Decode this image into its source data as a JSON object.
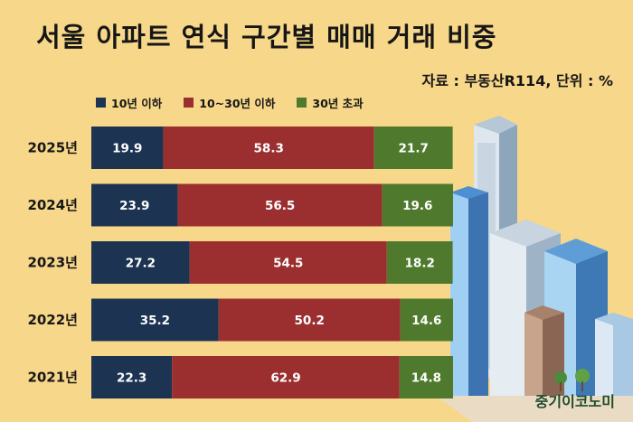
{
  "title": "서울 아파트 연식 구간별 매매 거래 비중",
  "source": "자료 : 부동산R114, 단위 : %",
  "brand": "중기이코노미",
  "colors": {
    "series": [
      "#1c3352",
      "#9b2f30",
      "#4f7a2d"
    ]
  },
  "chart_data": {
    "type": "bar",
    "orientation": "horizontal",
    "stacked": true,
    "categories": [
      "2025년",
      "2024년",
      "2023년",
      "2022년",
      "2021년"
    ],
    "series": [
      {
        "name": "10년 이하",
        "values": [
          19.9,
          23.9,
          27.2,
          35.2,
          22.3
        ]
      },
      {
        "name": "10~30년 이하",
        "values": [
          58.3,
          56.5,
          54.5,
          50.2,
          62.9
        ]
      },
      {
        "name": "30년 초과",
        "values": [
          21.7,
          19.6,
          18.2,
          14.6,
          14.8
        ]
      }
    ],
    "xlim": [
      0,
      100
    ],
    "legend": "top-left",
    "grid": false
  }
}
